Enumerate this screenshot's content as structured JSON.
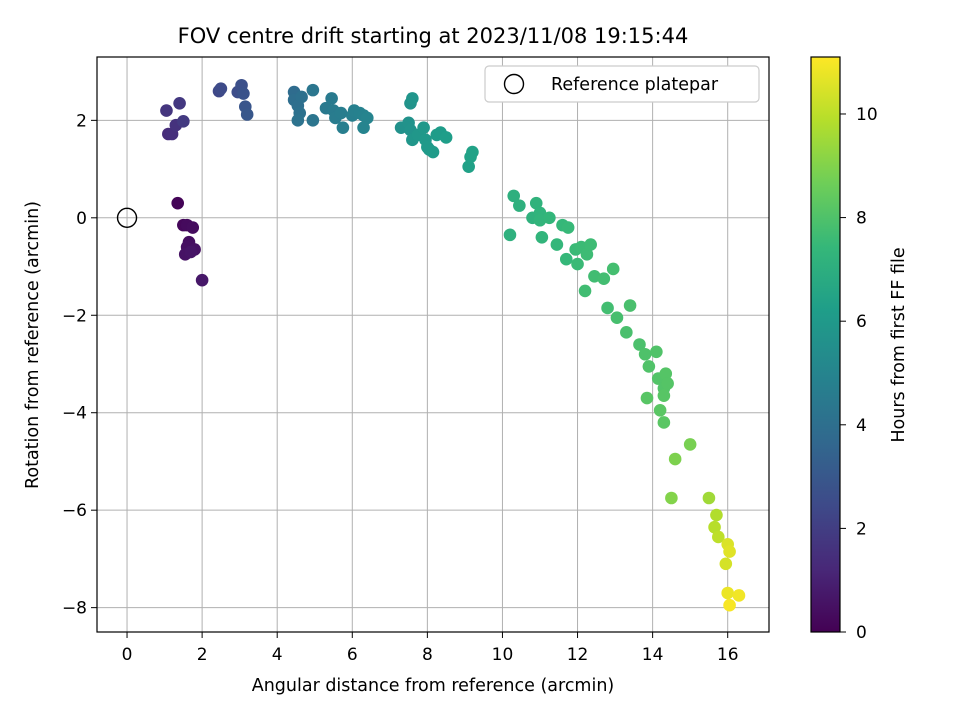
{
  "chart_data": {
    "type": "scatter",
    "title": "FOV centre drift starting at 2023/11/08 19:15:44",
    "xlabel": "Angular distance from reference (arcmin)",
    "ylabel": "Rotation from reference (arcmin)",
    "xlim": [
      -0.8,
      17.1
    ],
    "ylim": [
      -8.5,
      3.3
    ],
    "xticks": [
      0,
      2,
      4,
      6,
      8,
      10,
      12,
      14,
      16
    ],
    "yticks": [
      -8,
      -6,
      -4,
      -2,
      0,
      2
    ],
    "grid": true,
    "legend": {
      "position": "top-right",
      "entries": [
        "Reference platepar"
      ]
    },
    "reference_point": {
      "x": 0,
      "y": 0,
      "marker": "open-circle"
    },
    "colorbar": {
      "label": "Hours from first FF file",
      "min": 0,
      "max": 11.1,
      "ticks": [
        0,
        2,
        4,
        6,
        8,
        10
      ],
      "colormap": "viridis"
    },
    "colormap": [
      "#440154",
      "#482878",
      "#3e4a89",
      "#31688e",
      "#26828e",
      "#1f9e89",
      "#35b779",
      "#6ece58",
      "#b5de2b",
      "#fde725"
    ],
    "points": [
      [
        1.35,
        0.3,
        0.1
      ],
      [
        1.5,
        -0.15,
        0.2
      ],
      [
        1.6,
        -0.15,
        0.3
      ],
      [
        1.75,
        -0.2,
        0.35
      ],
      [
        1.65,
        -0.5,
        0.4
      ],
      [
        1.6,
        -0.6,
        0.45
      ],
      [
        1.8,
        -0.65,
        0.5
      ],
      [
        1.55,
        -0.75,
        0.55
      ],
      [
        1.7,
        -0.7,
        0.6
      ],
      [
        2.0,
        -1.28,
        0.7
      ],
      [
        1.1,
        1.72,
        1.4
      ],
      [
        1.2,
        1.72,
        1.5
      ],
      [
        1.3,
        1.9,
        1.6
      ],
      [
        1.05,
        2.2,
        1.7
      ],
      [
        1.4,
        2.35,
        1.8
      ],
      [
        1.5,
        1.98,
        1.9
      ],
      [
        2.45,
        2.6,
        2.4
      ],
      [
        2.5,
        2.65,
        2.5
      ],
      [
        2.95,
        2.58,
        2.6
      ],
      [
        3.05,
        2.72,
        2.7
      ],
      [
        3.1,
        2.55,
        2.8
      ],
      [
        3.15,
        2.28,
        2.9
      ],
      [
        3.2,
        2.12,
        3.0
      ],
      [
        4.45,
        2.58,
        3.9
      ],
      [
        4.45,
        2.42,
        4.0
      ],
      [
        4.55,
        2.3,
        4.05
      ],
      [
        4.65,
        2.48,
        4.1
      ],
      [
        4.6,
        2.15,
        4.15
      ],
      [
        4.55,
        2.0,
        4.2
      ],
      [
        4.95,
        2.0,
        4.3
      ],
      [
        4.95,
        2.62,
        4.35
      ],
      [
        5.3,
        2.25,
        4.5
      ],
      [
        5.45,
        2.45,
        4.55
      ],
      [
        5.5,
        2.2,
        4.6
      ],
      [
        5.55,
        2.05,
        4.65
      ],
      [
        5.7,
        2.15,
        4.7
      ],
      [
        5.75,
        1.85,
        4.75
      ],
      [
        6.0,
        2.1,
        4.8
      ],
      [
        6.05,
        2.2,
        4.85
      ],
      [
        6.2,
        2.15,
        4.9
      ],
      [
        6.3,
        2.1,
        4.95
      ],
      [
        6.4,
        2.05,
        5.0
      ],
      [
        6.3,
        1.85,
        5.0
      ],
      [
        7.3,
        1.85,
        5.6
      ],
      [
        7.5,
        1.95,
        5.65
      ],
      [
        7.55,
        1.8,
        5.7
      ],
      [
        7.55,
        2.35,
        5.7
      ],
      [
        7.6,
        2.45,
        5.75
      ],
      [
        7.6,
        1.6,
        5.8
      ],
      [
        7.75,
        1.7,
        5.85
      ],
      [
        7.9,
        1.85,
        5.9
      ],
      [
        7.95,
        1.6,
        5.95
      ],
      [
        8.0,
        1.45,
        6.0
      ],
      [
        8.05,
        1.4,
        6.0
      ],
      [
        8.15,
        1.35,
        6.05
      ],
      [
        8.25,
        1.7,
        6.1
      ],
      [
        8.35,
        1.75,
        6.1
      ],
      [
        8.5,
        1.65,
        6.15
      ],
      [
        9.1,
        1.05,
        6.3
      ],
      [
        9.15,
        1.25,
        6.35
      ],
      [
        9.2,
        1.35,
        6.35
      ],
      [
        10.3,
        0.45,
        7.0
      ],
      [
        10.45,
        0.25,
        7.05
      ],
      [
        10.2,
        -0.35,
        7.05
      ],
      [
        10.8,
        0.0,
        7.1
      ],
      [
        10.9,
        0.3,
        7.15
      ],
      [
        11.0,
        0.1,
        7.2
      ],
      [
        11.0,
        -0.05,
        7.25
      ],
      [
        11.05,
        -0.4,
        7.25
      ],
      [
        11.25,
        0.0,
        7.3
      ],
      [
        11.45,
        -0.55,
        7.35
      ],
      [
        11.6,
        -0.15,
        7.4
      ],
      [
        11.7,
        -0.85,
        7.4
      ],
      [
        11.75,
        -0.2,
        7.45
      ],
      [
        11.95,
        -0.65,
        7.5
      ],
      [
        12.0,
        -0.95,
        7.5
      ],
      [
        12.1,
        -0.6,
        7.55
      ],
      [
        12.25,
        -0.75,
        7.6
      ],
      [
        12.35,
        -0.55,
        7.6
      ],
      [
        12.45,
        -1.2,
        7.65
      ],
      [
        12.2,
        -1.5,
        7.65
      ],
      [
        12.7,
        -1.25,
        7.7
      ],
      [
        12.8,
        -1.85,
        7.7
      ],
      [
        12.95,
        -1.05,
        7.75
      ],
      [
        13.05,
        -2.05,
        7.8
      ],
      [
        13.3,
        -2.35,
        7.85
      ],
      [
        13.4,
        -1.8,
        7.85
      ],
      [
        13.65,
        -2.6,
        7.9
      ],
      [
        13.8,
        -2.8,
        7.95
      ],
      [
        13.9,
        -3.05,
        8.0
      ],
      [
        14.1,
        -2.75,
        8.0
      ],
      [
        14.15,
        -3.3,
        8.05
      ],
      [
        14.3,
        -3.5,
        8.05
      ],
      [
        14.35,
        -3.2,
        8.1
      ],
      [
        14.4,
        -3.4,
        8.1
      ],
      [
        13.85,
        -3.7,
        8.15
      ],
      [
        14.3,
        -3.65,
        8.15
      ],
      [
        14.2,
        -3.95,
        8.2
      ],
      [
        14.3,
        -4.2,
        8.2
      ],
      [
        15.0,
        -4.65,
        8.8
      ],
      [
        14.6,
        -4.95,
        8.9
      ],
      [
        14.5,
        -5.75,
        9.0
      ],
      [
        15.5,
        -5.75,
        9.5
      ],
      [
        15.7,
        -6.1,
        9.8
      ],
      [
        15.65,
        -6.35,
        9.9
      ],
      [
        15.75,
        -6.55,
        10.0
      ],
      [
        15.95,
        -7.1,
        10.4
      ],
      [
        16.0,
        -6.7,
        10.5
      ],
      [
        16.05,
        -6.85,
        10.6
      ],
      [
        16.0,
        -7.7,
        10.8
      ],
      [
        16.3,
        -7.75,
        10.9
      ],
      [
        16.05,
        -7.95,
        11.0
      ]
    ]
  }
}
